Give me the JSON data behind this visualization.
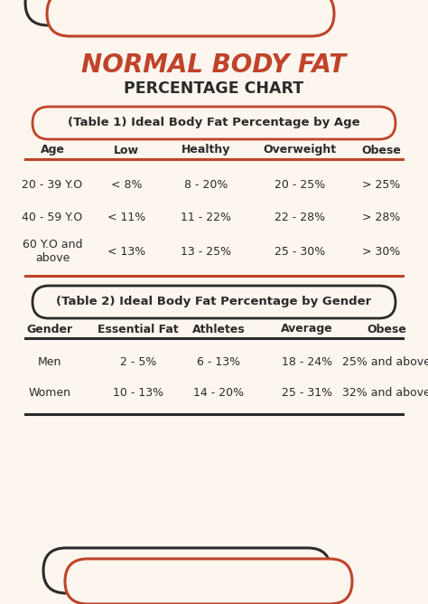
{
  "bg_color": "#fdf6ee",
  "title_line1": "NORMAL BODY FAT",
  "title_line2": "PERCENTAGE CHART",
  "title_color": "#c0432a",
  "subtitle_color": "#2b2b2b",
  "text_color": "#2b2b2b",
  "orange_color": "#c0432a",
  "dark_color": "#2b2b2b",
  "table1_header": "(Table 1) Ideal Body Fat Percentage by Age",
  "table1_cols": [
    "Age",
    "Low",
    "Healthy",
    "Overweight",
    "Obese"
  ],
  "table1_rows": [
    [
      "20 - 39 Y.O",
      "< 8%",
      "8 - 20%",
      "20 - 25%",
      "> 25%"
    ],
    [
      "40 - 59 Y.O",
      "< 11%",
      "11 - 22%",
      "22 - 28%",
      "> 28%"
    ],
    [
      "60 Y.O and\nabove",
      "< 13%",
      "13 - 25%",
      "25 - 30%",
      "> 30%"
    ]
  ],
  "table2_header": "(Table 2) Ideal Body Fat Percentage by Gender",
  "table2_cols": [
    "Gender",
    "Essential Fat",
    "Athletes",
    "Average",
    "Obese"
  ],
  "table2_rows": [
    [
      "Men",
      "2 - 5%",
      "6 - 13%",
      "18 - 24%",
      "25% and above"
    ],
    [
      "Women",
      "10 - 13%",
      "14 - 20%",
      "25 - 31%",
      "32% and above"
    ]
  ]
}
